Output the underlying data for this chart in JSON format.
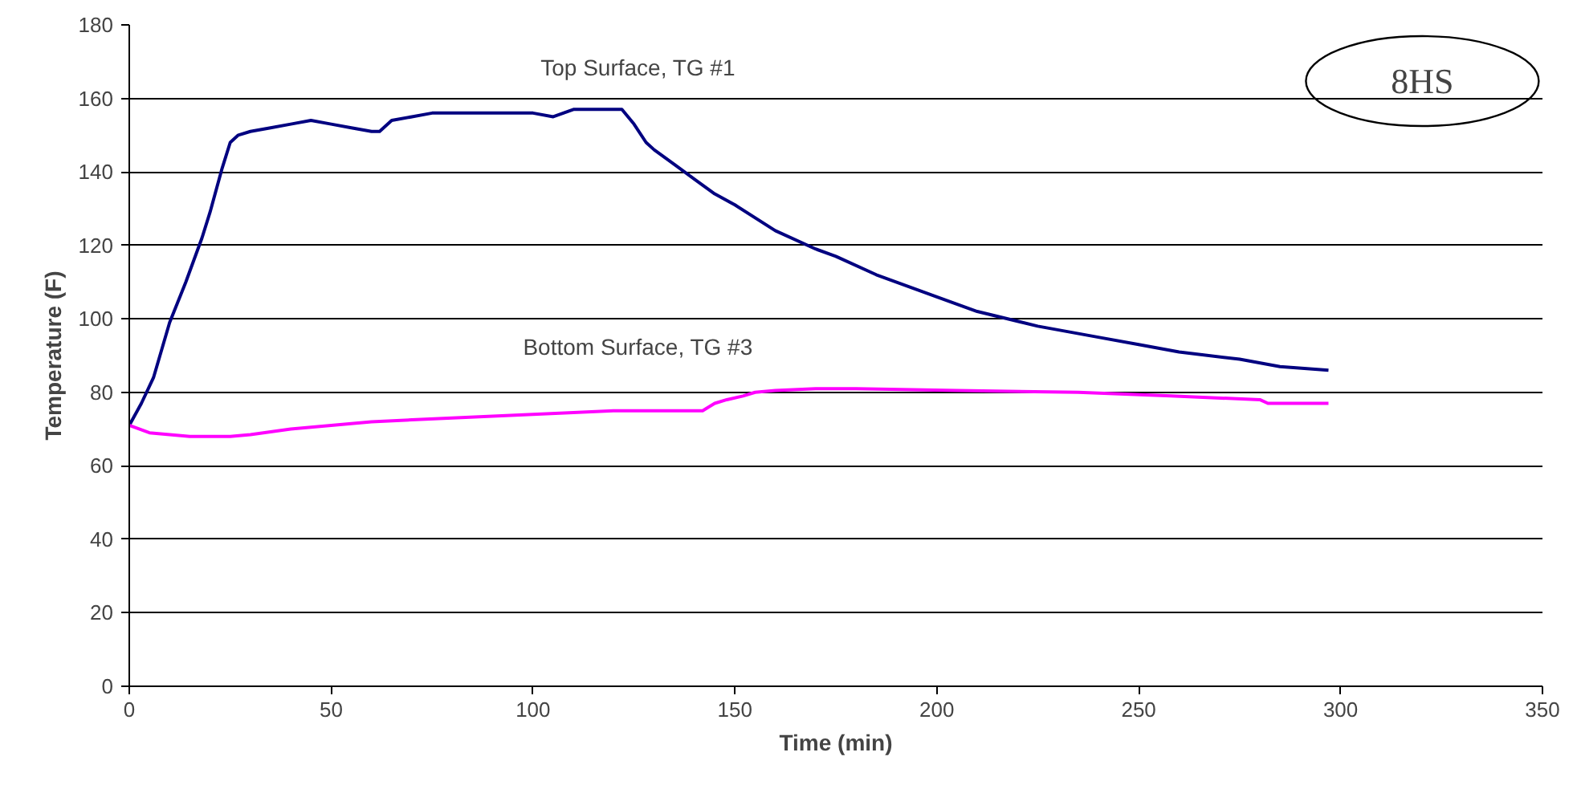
{
  "chart_data": {
    "type": "line",
    "xlabel": "Time (min)",
    "ylabel": "Temperature (F)",
    "xlim": [
      0,
      350
    ],
    "ylim": [
      0,
      180
    ],
    "xticks": [
      0,
      50,
      100,
      150,
      200,
      250,
      300,
      350
    ],
    "yticks": [
      0,
      20,
      40,
      60,
      80,
      100,
      120,
      140,
      160,
      180
    ],
    "grid": "y",
    "marker": "none",
    "line_style": "solid",
    "annotations": [
      "8HS"
    ],
    "series": [
      {
        "name": "Top Surface, TG #1",
        "color": "#000080",
        "x": [
          0,
          3,
          6,
          10,
          14,
          18,
          20,
          23,
          25,
          27,
          30,
          35,
          40,
          45,
          50,
          55,
          60,
          62,
          65,
          70,
          75,
          80,
          90,
          100,
          105,
          110,
          115,
          122,
          125,
          128,
          130,
          135,
          140,
          145,
          150,
          160,
          170,
          175,
          185,
          200,
          210,
          225,
          240,
          250,
          260,
          275,
          285,
          297
        ],
        "values": [
          71,
          77,
          84,
          99,
          110,
          122,
          129,
          141,
          148,
          150,
          151,
          152,
          153,
          154,
          153,
          152,
          151,
          151,
          154,
          155,
          156,
          156,
          156,
          156,
          155,
          157,
          157,
          157,
          153,
          148,
          146,
          142,
          138,
          134,
          131,
          124,
          119,
          117,
          112,
          106,
          102,
          98,
          95,
          93,
          91,
          89,
          87,
          86
        ]
      },
      {
        "name": "Bottom Surface, TG #3",
        "color": "#ff00ff",
        "x": [
          0,
          5,
          10,
          15,
          25,
          30,
          40,
          50,
          60,
          70,
          80,
          90,
          100,
          110,
          120,
          130,
          142,
          145,
          148,
          152,
          155,
          160,
          170,
          180,
          205,
          235,
          258,
          280,
          282,
          297
        ],
        "values": [
          71,
          69,
          68.5,
          68,
          68,
          68.5,
          70,
          71,
          72,
          72.5,
          73,
          73.5,
          74,
          74.5,
          75,
          75,
          75,
          77,
          78,
          79,
          80,
          80.5,
          81,
          81,
          80.5,
          80,
          79,
          78,
          77,
          77
        ]
      }
    ]
  }
}
